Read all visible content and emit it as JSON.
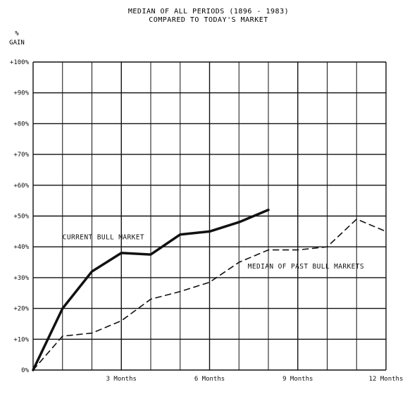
{
  "chart_data": {
    "type": "line",
    "title": "MEDIAN OF ALL PERIODS (1896 - 1983)",
    "subtitle": "COMPARED TO TODAY'S MARKET",
    "ylabel_line1": "%",
    "ylabel_line2": "GAIN",
    "xlabel": "",
    "xlim": [
      0,
      12
    ],
    "ylim": [
      0,
      100
    ],
    "grid": true,
    "y_ticks": [
      {
        "value": 0,
        "label": "0%"
      },
      {
        "value": 10,
        "label": "+10%"
      },
      {
        "value": 20,
        "label": "+20%"
      },
      {
        "value": 30,
        "label": "+30%"
      },
      {
        "value": 40,
        "label": "+40%"
      },
      {
        "value": 50,
        "label": "+50%"
      },
      {
        "value": 60,
        "label": "+60%"
      },
      {
        "value": 70,
        "label": "+70%"
      },
      {
        "value": 80,
        "label": "+80%"
      },
      {
        "value": 90,
        "label": "+90%"
      },
      {
        "value": 100,
        "label": "+100%"
      }
    ],
    "x_ticks": [
      {
        "value": 3,
        "label": "3 Months"
      },
      {
        "value": 6,
        "label": "6 Months"
      },
      {
        "value": 9,
        "label": "9 Months"
      },
      {
        "value": 12,
        "label": "12 Months"
      }
    ],
    "series": [
      {
        "name": "CURRENT BULL MARKET",
        "style": "solid",
        "color": "#111111",
        "x": [
          0,
          1,
          2,
          3,
          4,
          5,
          6,
          7,
          8
        ],
        "y": [
          0,
          20,
          32,
          38,
          37.5,
          44,
          45,
          48,
          52
        ]
      },
      {
        "name": "MEDIAN OF PAST BULL MARKETS",
        "style": "dashed",
        "color": "#111111",
        "x": [
          0,
          1,
          2,
          3,
          4,
          5,
          6,
          7,
          8,
          9,
          10,
          11,
          12
        ],
        "y": [
          0,
          11,
          12,
          16,
          23,
          25.5,
          28.5,
          35,
          39,
          39,
          40,
          49,
          45
        ]
      }
    ],
    "annotations": [
      {
        "text": "CURRENT BULL MARKET",
        "x": 1.0,
        "y": 42.5
      },
      {
        "text": "MEDIAN OF PAST BULL MARKETS",
        "x": 7.3,
        "y": 33.0
      }
    ]
  }
}
